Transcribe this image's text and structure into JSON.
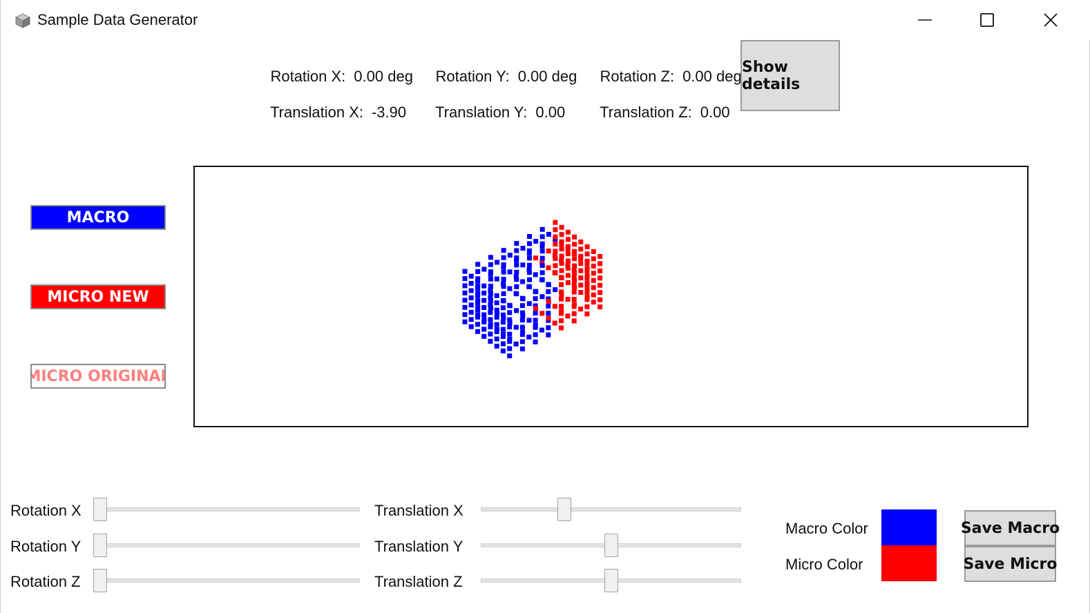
{
  "window": {
    "title": "Sample Data Generator",
    "icon": "cube-icon",
    "controls": [
      "minimize-icon",
      "maximize-icon",
      "close-icon"
    ]
  },
  "readouts": {
    "rotation_x": {
      "label": "Rotation X:",
      "value": "0.00 deg"
    },
    "rotation_y": {
      "label": "Rotation Y:",
      "value": "0.00 deg"
    },
    "rotation_z": {
      "label": "Rotation Z:",
      "value": "0.00 deg"
    },
    "translation_x": {
      "label": "Translation X:",
      "value": "-3.90"
    },
    "translation_y": {
      "label": "Translation Y:",
      "value": "0.00"
    },
    "translation_z": {
      "label": "Translation Z:",
      "value": "0.00"
    }
  },
  "details_button": {
    "label": "Show details"
  },
  "legend": {
    "macro": "MACRO",
    "micro_new": "MICRO NEW",
    "micro_original": "MICRO ORIGINAL"
  },
  "sliders": {
    "rotation_x": {
      "label": "Rotation X",
      "value": 0.0
    },
    "rotation_y": {
      "label": "Rotation Y",
      "value": 0.0
    },
    "rotation_z": {
      "label": "Rotation Z",
      "value": 0.0
    },
    "translation_x": {
      "label": "Translation X",
      "value": 0.31
    },
    "translation_y": {
      "label": "Translation Y",
      "value": 0.5
    },
    "translation_z": {
      "label": "Translation Z",
      "value": 0.5
    }
  },
  "colors": {
    "macro_label": "Macro Color",
    "micro_label": "Micro Color",
    "macro": "#0000ff",
    "micro": "#ff0000",
    "micro_original_text": "#ff8080"
  },
  "buttons": {
    "save_macro": "Save Macro",
    "save_micro": "Save Micro"
  }
}
